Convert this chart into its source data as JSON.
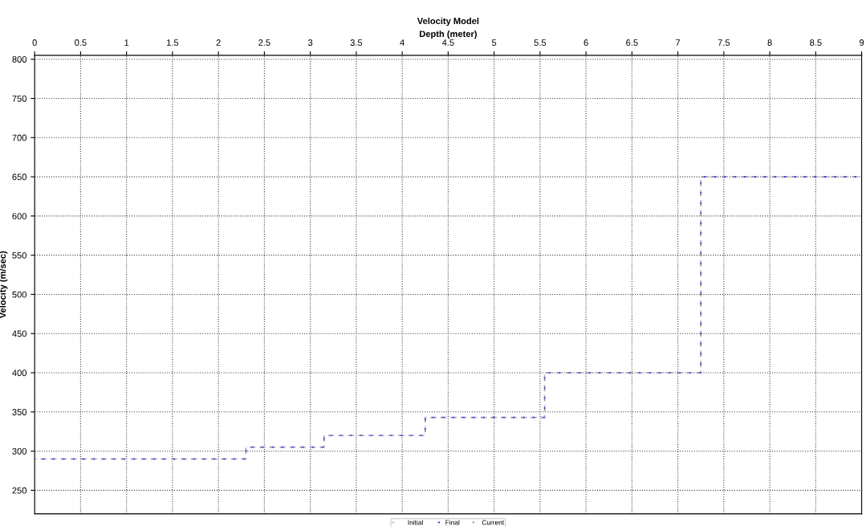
{
  "chart_data": {
    "type": "step",
    "title": "Velocity Model",
    "xlabel": "Depth (meter)",
    "ylabel": "Velocity (m/sec)",
    "x": [
      0,
      2.3,
      3.15,
      4.25,
      5.55,
      7.25,
      9
    ],
    "series": [
      {
        "name": "Initial",
        "color": "#b0a8e0",
        "values": [
          290,
          305,
          320,
          343,
          400,
          650,
          650
        ]
      },
      {
        "name": "Final",
        "color": "#3030d0",
        "values": [
          290,
          305,
          320,
          343,
          400,
          650,
          650
        ]
      },
      {
        "name": "Current",
        "color": "#909090",
        "values": [
          290,
          305,
          320,
          343,
          400,
          650,
          650
        ]
      }
    ],
    "xlim": [
      0,
      9
    ],
    "xticks": [
      0,
      0.5,
      1,
      1.5,
      2,
      2.5,
      3,
      3.5,
      4,
      4.5,
      5,
      5.5,
      6,
      6.5,
      7,
      7.5,
      8,
      8.5,
      9
    ],
    "ylim": [
      220,
      805
    ],
    "yticks": [
      250,
      300,
      350,
      400,
      450,
      500,
      550,
      600,
      650,
      700,
      750,
      800
    ],
    "grid": true,
    "legend": "bottom",
    "line_style": "dotted"
  }
}
